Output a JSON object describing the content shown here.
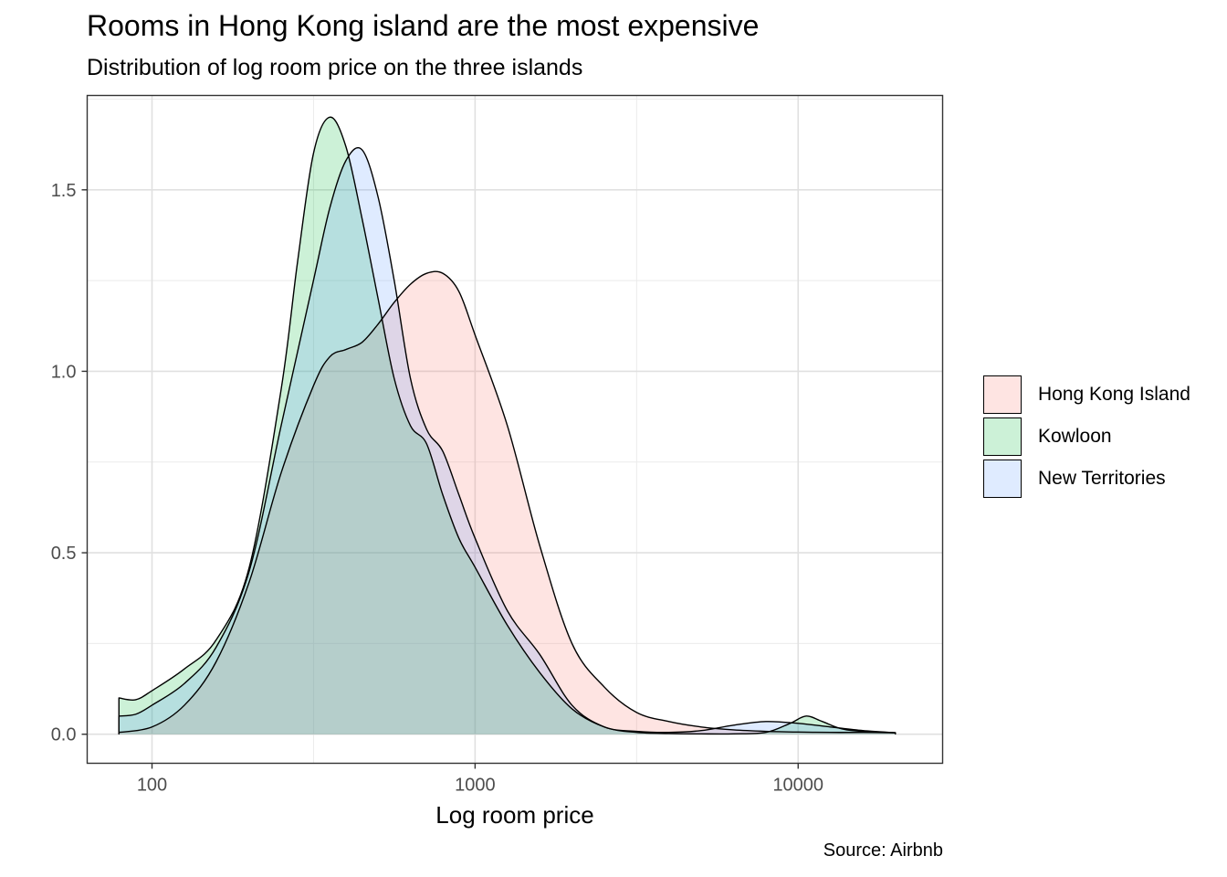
{
  "chart_data": {
    "type": "area",
    "title": "Rooms in Hong Kong island are the most expensive",
    "subtitle": "Distribution of log room price on the three islands",
    "xlabel": "Log room price",
    "ylabel": "",
    "caption": "Source: Airbnb",
    "x_scale": "log10",
    "xlim": [
      63,
      28000
    ],
    "ylim": [
      -0.08,
      1.76
    ],
    "x_ticks": [
      100,
      1000,
      10000
    ],
    "x_tick_labels": [
      "100",
      "1000",
      "10000"
    ],
    "y_ticks": [
      0,
      0.5,
      1,
      1.5
    ],
    "y_tick_labels": [
      "0.0",
      "0.5",
      "1.0",
      "1.5"
    ],
    "grid": true,
    "legend_position": "right",
    "series": [
      {
        "name": "Hong Kong Island",
        "color": "#F8766D",
        "x": [
          79,
          100,
          126,
          158,
          200,
          251,
          316,
          355,
          398,
          447,
          501,
          562,
          631,
          708,
          794,
          891,
          1000,
          1259,
          1585,
          1995,
          2512,
          3162,
          3981,
          5012,
          6310,
          7943,
          10000,
          12589,
          15849,
          20000
        ],
        "y": [
          0.005,
          0.02,
          0.08,
          0.2,
          0.42,
          0.72,
          0.96,
          1.04,
          1.06,
          1.08,
          1.13,
          1.19,
          1.24,
          1.27,
          1.27,
          1.22,
          1.1,
          0.85,
          0.52,
          0.25,
          0.13,
          0.06,
          0.035,
          0.02,
          0.012,
          0.008,
          0.006,
          0.005,
          0.005,
          0.004
        ]
      },
      {
        "name": "Kowloon",
        "color": "#00BA38",
        "x": [
          79,
          89,
          100,
          126,
          158,
          200,
          251,
          282,
          316,
          355,
          398,
          447,
          501,
          562,
          631,
          708,
          794,
          891,
          1000,
          1259,
          1585,
          1995,
          2512,
          3162,
          3981,
          5012,
          6310,
          7943,
          9441,
          10593,
          11885,
          14125,
          20000
        ],
        "y": [
          0.1,
          0.095,
          0.12,
          0.18,
          0.26,
          0.46,
          0.95,
          1.3,
          1.6,
          1.7,
          1.62,
          1.42,
          1.2,
          0.98,
          0.85,
          0.8,
          0.66,
          0.54,
          0.46,
          0.3,
          0.17,
          0.07,
          0.02,
          0.005,
          0.002,
          0.001,
          0.001,
          0.005,
          0.03,
          0.05,
          0.035,
          0.012,
          0.004
        ]
      },
      {
        "name": "New Territories",
        "color": "#619CFF",
        "x": [
          79,
          89,
          100,
          126,
          158,
          200,
          251,
          316,
          355,
          398,
          447,
          501,
          562,
          631,
          708,
          794,
          891,
          1000,
          1259,
          1585,
          1995,
          2512,
          3162,
          3981,
          5012,
          6310,
          7943,
          10000,
          12589,
          15849,
          20000
        ],
        "y": [
          0.05,
          0.055,
          0.08,
          0.14,
          0.24,
          0.45,
          0.85,
          1.25,
          1.45,
          1.58,
          1.61,
          1.48,
          1.25,
          0.98,
          0.84,
          0.78,
          0.66,
          0.54,
          0.34,
          0.22,
          0.08,
          0.02,
          0.008,
          0.005,
          0.01,
          0.025,
          0.035,
          0.03,
          0.02,
          0.01,
          0.004
        ]
      }
    ]
  }
}
